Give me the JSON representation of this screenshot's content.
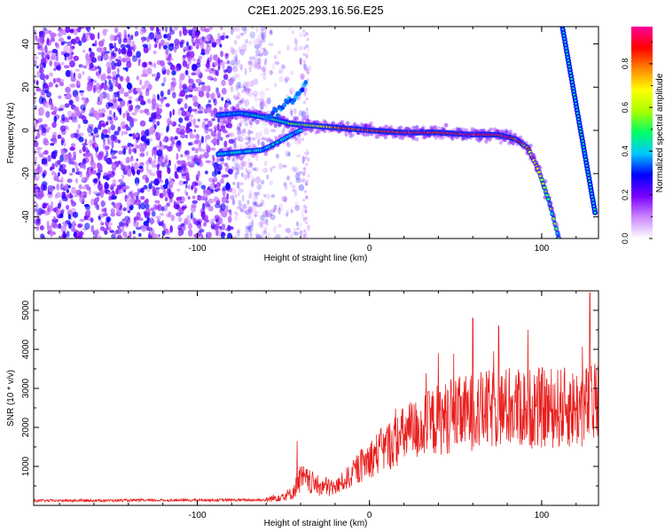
{
  "title": "C2E1.2025.293.16.56.E25",
  "chart_data": [
    {
      "type": "heatmap",
      "name": "spectrogram",
      "xlabel": "Height of straight line (km)",
      "ylabel": "Frequency (Hz)",
      "xlim": [
        -195,
        133
      ],
      "ylim": [
        -50,
        48
      ],
      "xticks": [
        -100,
        0,
        100
      ],
      "yticks": [
        -40,
        -20,
        0,
        20,
        40
      ],
      "xtick_labels": [
        "-100",
        "0",
        "100"
      ],
      "ytick_labels": [
        "-40",
        "-20",
        "0",
        "20",
        "40"
      ],
      "colorbar": {
        "label": "Normalized spectral amplitude",
        "range": [
          0,
          0.97
        ],
        "ticks": [
          0.0,
          0.2,
          0.4,
          0.6,
          0.8
        ],
        "tick_labels": [
          "0.0",
          "0.2",
          "0.4",
          "0.6",
          "0.8"
        ],
        "colors": [
          "#ffffff",
          "#cc88ff",
          "#7a00ff",
          "#0000ff",
          "#00c8ff",
          "#00ff66",
          "#aaff00",
          "#ffff00",
          "#ff8800",
          "#ff0000",
          "#ff0099"
        ]
      },
      "ridge": {
        "description": "main frequency track",
        "x": [
          -88,
          -75,
          -60,
          -45,
          -30,
          -15,
          0,
          20,
          40,
          60,
          75,
          85,
          92,
          98,
          104,
          110
        ],
        "y": [
          7,
          8,
          6,
          3,
          2,
          1,
          0,
          -1,
          -1,
          -2,
          -2,
          -4,
          -8,
          -18,
          -32,
          -50
        ],
        "amplitude": [
          0.35,
          0.4,
          0.45,
          0.55,
          0.7,
          0.85,
          0.9,
          0.92,
          0.93,
          0.95,
          0.95,
          0.9,
          0.8,
          0.7,
          0.55,
          0.45
        ]
      },
      "lower_branch": {
        "x": [
          -88,
          -75,
          -62,
          -52,
          -45,
          -40
        ],
        "y": [
          -11,
          -10,
          -9,
          -5,
          -2,
          0
        ]
      },
      "upper_branch": {
        "x": [
          -60,
          -52,
          -45,
          -40,
          -37
        ],
        "y": [
          5,
          10,
          14,
          18,
          22
        ]
      },
      "steep_line": {
        "x": [
          112,
          131
        ],
        "y": [
          48,
          -38
        ]
      },
      "noise_region_x": [
        -195,
        -60
      ]
    },
    {
      "type": "line",
      "name": "snr",
      "xlabel": "Height of straight line (km)",
      "ylabel": "SNR (10 * v/v)",
      "xlim": [
        -195,
        133
      ],
      "ylim": [
        0,
        5500
      ],
      "xticks": [
        -100,
        0,
        100
      ],
      "yticks": [
        1000,
        2000,
        3000,
        4000,
        5000
      ],
      "xtick_labels": [
        "-100",
        "0",
        "100"
      ],
      "ytick_labels": [
        "1000",
        "2000",
        "3000",
        "4000",
        "5000"
      ],
      "color": "#e8201e",
      "trend": {
        "x": [
          -195,
          -60,
          -45,
          -40,
          -30,
          -20,
          -10,
          0,
          10,
          20,
          30,
          40,
          60,
          80,
          100,
          120,
          133
        ],
        "y": [
          120,
          140,
          300,
          700,
          500,
          450,
          800,
          1200,
          1500,
          1800,
          2000,
          2200,
          2400,
          2500,
          2500,
          2500,
          2600
        ]
      },
      "peaks": [
        {
          "x": 60,
          "y": 4800
        },
        {
          "x": 75,
          "y": 4600
        },
        {
          "x": 92,
          "y": 4500
        },
        {
          "x": 128,
          "y": 5450
        },
        {
          "x": 40,
          "y": 3900
        },
        {
          "x": -42,
          "y": 1650
        }
      ]
    }
  ]
}
